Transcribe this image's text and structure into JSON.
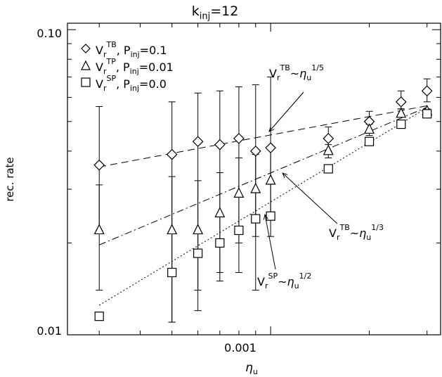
{
  "chart_data": {
    "type": "scatter",
    "title_main": "k",
    "title_sub": "inj",
    "title_rest": "=12",
    "xlabel_main": "η",
    "xlabel_sub": "u",
    "ylabel": "rec. rate",
    "x_scale": "log",
    "y_scale": "log",
    "xlim": [
      0.00024,
      0.0033
    ],
    "ylim": [
      0.01,
      0.105
    ],
    "x_ticks": [
      {
        "value": 0.001,
        "label": "0.001"
      }
    ],
    "y_ticks": [
      {
        "value": 0.01,
        "label": "0.01"
      },
      {
        "value": 0.1,
        "label": "0.10"
      }
    ],
    "grid": false,
    "legend_position": "top-left",
    "legend": [
      {
        "marker": "diamond",
        "v_sup": "TB",
        "p_value": "0.1"
      },
      {
        "marker": "triangle",
        "v_sup": "TP",
        "p_value": "0.01"
      },
      {
        "marker": "square",
        "v_sup": "SP",
        "p_value": "0.0"
      }
    ],
    "legend_v": "V",
    "legend_v_sub": "r",
    "legend_p": "P",
    "legend_p_sub": "inj",
    "series": [
      {
        "marker": "diamond",
        "x": [
          0.0003,
          0.0005,
          0.0006,
          0.0007,
          0.0008,
          0.0009,
          0.001,
          0.0015,
          0.002,
          0.0025,
          0.003
        ],
        "y": [
          0.036,
          0.039,
          0.043,
          0.042,
          0.044,
          0.04,
          0.041,
          0.044,
          0.05,
          0.058,
          0.063
        ],
        "y_err_low": [
          0.022,
          0.011,
          0.012,
          0.015,
          0.016,
          0.014,
          0.024,
          0.04,
          0.046,
          0.055,
          0.058
        ],
        "y_err_high": [
          0.056,
          0.058,
          0.062,
          0.063,
          0.065,
          0.066,
          0.07,
          0.048,
          0.054,
          0.063,
          0.069
        ]
      },
      {
        "marker": "triangle",
        "x": [
          0.0003,
          0.0005,
          0.0006,
          0.0007,
          0.0008,
          0.0009,
          0.001,
          0.0015,
          0.002,
          0.0025,
          0.003
        ],
        "y": [
          0.022,
          0.022,
          0.022,
          0.025,
          0.029,
          0.03,
          0.032,
          0.04,
          0.047,
          0.053,
          0.054
        ],
        "y_err_low": [
          0.014,
          0.011,
          0.014,
          0.016,
          0.02,
          0.021,
          0.021,
          0.038,
          0.045,
          0.052,
          0.053
        ],
        "y_err_high": [
          0.031,
          0.033,
          0.032,
          0.034,
          0.038,
          0.039,
          0.041,
          0.042,
          0.049,
          0.055,
          0.055
        ]
      },
      {
        "marker": "square",
        "x": [
          0.0003,
          0.0005,
          0.0006,
          0.0007,
          0.0008,
          0.0009,
          0.001,
          0.0015,
          0.002,
          0.0025,
          0.003
        ],
        "y": [
          0.0115,
          0.016,
          0.0185,
          0.02,
          0.022,
          0.024,
          0.0245,
          0.035,
          0.043,
          0.049,
          0.053
        ],
        "y_err_low": [],
        "y_err_high": []
      }
    ],
    "fits": [
      {
        "style": "dashed",
        "dash": "10,6",
        "x": [
          0.0003,
          0.003
        ],
        "y": [
          0.0355,
          0.0563
        ]
      },
      {
        "style": "dash-dot",
        "dash": "10,4,2,4",
        "x": [
          0.0003,
          0.003
        ],
        "y": [
          0.0197,
          0.0557
        ]
      },
      {
        "style": "dotted",
        "dash": "2,3",
        "x": [
          0.0003,
          0.003
        ],
        "y": [
          0.0125,
          0.0555
        ]
      }
    ],
    "annotations": [
      {
        "v_sup": "TB",
        "exp": "1/5"
      },
      {
        "v_sup": "TB",
        "exp": "1/3"
      },
      {
        "v_sup": "SP",
        "exp": "1/2"
      }
    ],
    "annotation_v": "V",
    "annotation_v_sub": "r",
    "annotation_rel": "~",
    "annotation_eta": "η",
    "annotation_eta_sub": "u"
  }
}
